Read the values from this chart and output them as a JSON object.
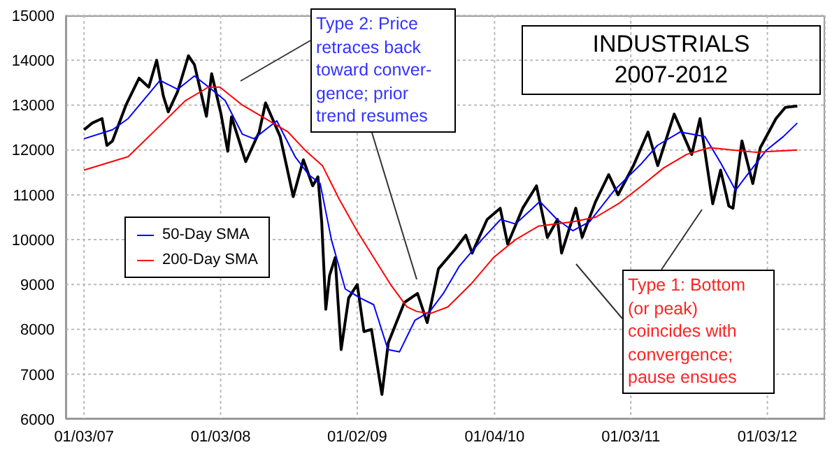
{
  "chart_data": {
    "type": "line",
    "title": "INDUSTRIALS\n2007-2012",
    "xlim": [
      "2006-11-15",
      "2012-06-05"
    ],
    "xticks": [
      {
        "value": "2007-01-03",
        "label": "01/03/07"
      },
      {
        "value": "2008-01-03",
        "label": "01/03/08"
      },
      {
        "value": "2009-01-02",
        "label": "01/02/09"
      },
      {
        "value": "2010-01-04",
        "label": "01/04/10"
      },
      {
        "value": "2011-01-03",
        "label": "01/03/11"
      },
      {
        "value": "2012-01-03",
        "label": "01/03/12"
      }
    ],
    "ylim": [
      6000,
      15000
    ],
    "yticks": [
      6000,
      7000,
      8000,
      9000,
      10000,
      11000,
      12000,
      13000,
      14000,
      15000
    ],
    "grid": true,
    "legend": "left",
    "line_style": "solid",
    "marker": "none",
    "series": [
      {
        "color": "#000000",
        "x": [
          "2007-01-03",
          "2007-01-25",
          "2007-02-20",
          "2007-03-05",
          "2007-03-20",
          "2007-04-25",
          "2007-05-30",
          "2007-06-25",
          "2007-07-16",
          "2007-08-03",
          "2007-08-16",
          "2007-09-10",
          "2007-10-09",
          "2007-10-25",
          "2007-11-26",
          "2007-12-10",
          "2008-01-04",
          "2008-01-22",
          "2008-02-01",
          "2008-03-10",
          "2008-04-15",
          "2008-05-02",
          "2008-06-10",
          "2008-07-15",
          "2008-08-11",
          "2008-09-05",
          "2008-09-19",
          "2008-09-29",
          "2008-10-10",
          "2008-10-20",
          "2008-11-04",
          "2008-11-20",
          "2008-12-10",
          "2009-01-02",
          "2009-01-20",
          "2009-02-09",
          "2009-03-09",
          "2009-03-26",
          "2009-05-08",
          "2009-06-12",
          "2009-07-08",
          "2009-08-07",
          "2009-09-22",
          "2009-10-19",
          "2009-11-05",
          "2009-12-15",
          "2010-01-19",
          "2010-02-08",
          "2010-03-20",
          "2010-04-26",
          "2010-05-25",
          "2010-06-21",
          "2010-07-02",
          "2010-08-09",
          "2010-08-26",
          "2010-10-01",
          "2010-11-05",
          "2010-11-30",
          "2011-01-10",
          "2011-02-18",
          "2011-03-16",
          "2011-04-29",
          "2011-06-15",
          "2011-07-07",
          "2011-08-10",
          "2011-08-31",
          "2011-09-22",
          "2011-10-03",
          "2011-10-27",
          "2011-11-25",
          "2011-12-15",
          "2012-01-26",
          "2012-02-20",
          "2012-03-23"
        ],
        "values": [
          12450,
          12600,
          12700,
          12100,
          12200,
          13000,
          13600,
          13400,
          14000,
          13200,
          12850,
          13300,
          14100,
          13900,
          12750,
          13700,
          12800,
          11970,
          12740,
          11740,
          12400,
          13050,
          12300,
          10960,
          11780,
          11200,
          11400,
          10400,
          8450,
          9200,
          9600,
          7550,
          8700,
          9000,
          7950,
          8000,
          6550,
          7700,
          8600,
          8800,
          8150,
          9350,
          9800,
          10100,
          9700,
          10450,
          10700,
          9900,
          10700,
          11200,
          10050,
          10450,
          9700,
          10700,
          10050,
          10850,
          11450,
          11000,
          11650,
          12400,
          11650,
          12800,
          11900,
          12700,
          10800,
          11550,
          10750,
          10700,
          12200,
          11250,
          12050,
          12700,
          12950,
          12980
        ]
      },
      {
        "name": "50-Day SMA",
        "color": "#0000ff",
        "x": [
          "2007-01-03",
          "2007-03-20",
          "2007-05-01",
          "2007-07-25",
          "2007-09-10",
          "2007-10-25",
          "2007-12-10",
          "2008-01-15",
          "2008-03-01",
          "2008-04-01",
          "2008-06-01",
          "2008-07-20",
          "2008-08-25",
          "2008-09-25",
          "2008-10-25",
          "2008-12-01",
          "2009-01-10",
          "2009-02-15",
          "2009-03-25",
          "2009-04-25",
          "2009-06-05",
          "2009-07-15",
          "2009-08-20",
          "2009-10-01",
          "2009-12-01",
          "2010-01-20",
          "2010-03-01",
          "2010-05-05",
          "2010-06-20",
          "2010-08-01",
          "2010-09-15",
          "2010-11-20",
          "2011-02-01",
          "2011-03-15",
          "2011-05-15",
          "2011-07-20",
          "2011-09-01",
          "2011-10-10",
          "2011-11-15",
          "2012-01-01",
          "2012-02-15",
          "2012-03-23"
        ],
        "values": [
          12250,
          12450,
          12700,
          13550,
          13350,
          13650,
          13350,
          13100,
          12350,
          12250,
          12650,
          11850,
          11450,
          11250,
          10000,
          8900,
          8700,
          8550,
          7550,
          7500,
          8200,
          8400,
          8800,
          9400,
          10000,
          10450,
          10350,
          10850,
          10450,
          10200,
          10400,
          11100,
          11700,
          12100,
          12400,
          12300,
          11700,
          11100,
          11500,
          12000,
          12300,
          12600
        ]
      },
      {
        "name": "200-Day SMA",
        "color": "#ff0000",
        "x": [
          "2007-01-03",
          "2007-05-01",
          "2007-08-01",
          "2007-10-01",
          "2007-12-01",
          "2008-01-01",
          "2008-03-01",
          "2008-05-01",
          "2008-07-01",
          "2008-08-15",
          "2008-10-01",
          "2008-11-15",
          "2009-01-01",
          "2009-02-15",
          "2009-04-01",
          "2009-05-15",
          "2009-06-10",
          "2009-07-15",
          "2009-09-01",
          "2009-11-01",
          "2010-01-01",
          "2010-03-01",
          "2010-05-01",
          "2010-08-01",
          "2010-10-01",
          "2010-12-01",
          "2011-02-01",
          "2011-04-01",
          "2011-06-01",
          "2011-08-01",
          "2011-10-01",
          "2011-12-01",
          "2012-03-23"
        ],
        "values": [
          11550,
          11850,
          12600,
          13100,
          13400,
          13400,
          13000,
          12700,
          12400,
          12000,
          11650,
          10900,
          10200,
          9600,
          9000,
          8500,
          8400,
          8350,
          8500,
          9000,
          9600,
          10000,
          10300,
          10400,
          10500,
          10800,
          11200,
          11600,
          11900,
          12050,
          12000,
          11950,
          12000
        ]
      }
    ],
    "annotations": [
      "Type 2: Price retraces back toward conver-gence; prior trend resumes",
      "Type 1: Bottom (or peak) coincides with convergence; pause ensues"
    ]
  }
}
